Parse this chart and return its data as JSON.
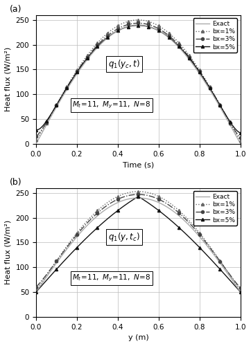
{
  "ylabel": "Heat flux (W/m²)",
  "xlabel_a": "Time (s)",
  "xlabel_b": "y (m)",
  "xlim": [
    0,
    1
  ],
  "ylim_a": [
    0,
    260
  ],
  "ylim_b": [
    0,
    260
  ],
  "yticks": [
    0,
    50,
    100,
    150,
    200,
    250
  ],
  "xticks": [
    0,
    0.2,
    0.4,
    0.6,
    0.8,
    1.0
  ],
  "exact_peak_a": 240,
  "bx1_peak_a": 252,
  "bx3_peak_a": 247,
  "bx5_peak_a": 244,
  "exact_peak_b": 240,
  "bx1_peak_b": 253,
  "bx3_peak_b": 247,
  "bx5_peak_b": 243,
  "exact_base_b": 50,
  "bx5_base_b": 50,
  "n_pts_a": 21,
  "n_pts_b": 11
}
